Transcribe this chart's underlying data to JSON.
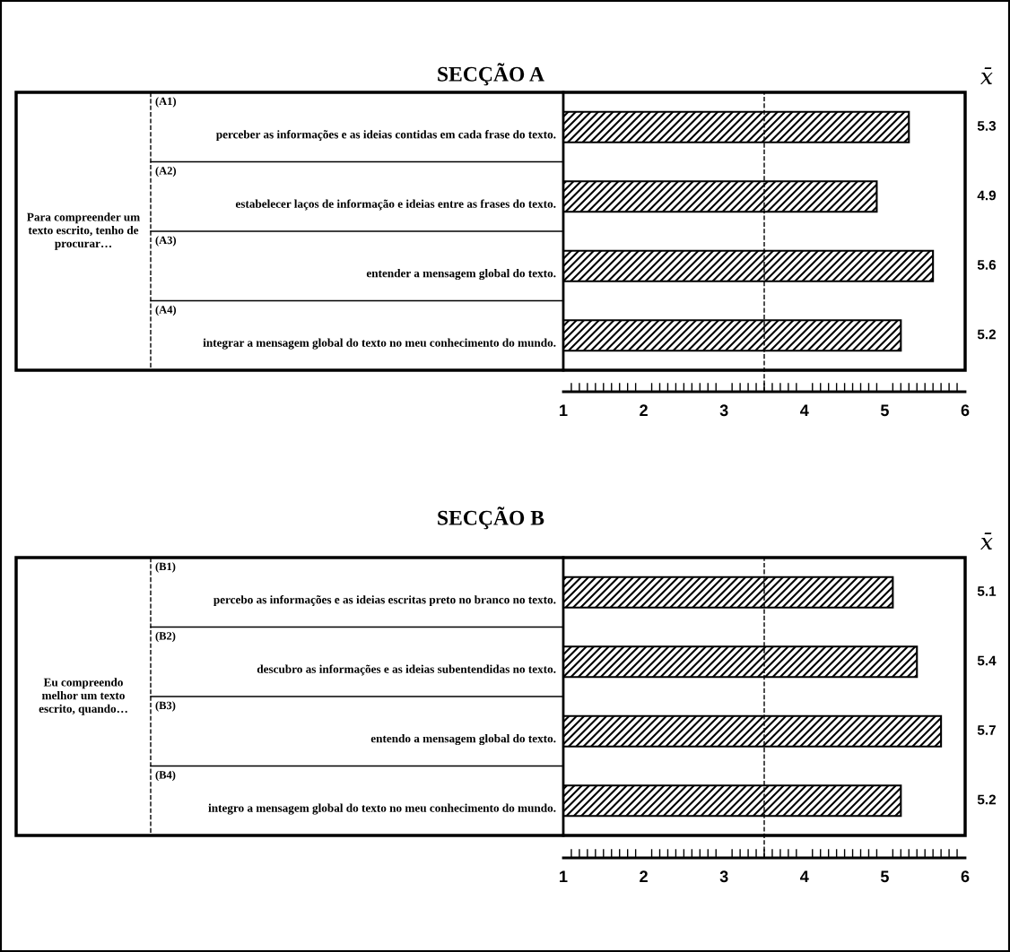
{
  "chart_data": [
    {
      "type": "bar",
      "orientation": "horizontal",
      "title": "SECÇÃO A",
      "categories": [
        "perceber as informações e as ideias contidas em cada frase do texto.",
        "estabelecer laços de informação e ideias entre as frases do texto.",
        "entender a mensagem global do texto.",
        "integrar a mensagem global do texto no meu conhecimento do mundo."
      ],
      "values": [
        5.3,
        4.9,
        5.6,
        5.2
      ],
      "xlim": [
        1,
        6
      ],
      "xticks": [
        1,
        2,
        3,
        4,
        5,
        6
      ],
      "data_labels": true,
      "grid": false,
      "legend": false,
      "ref_lines": [
        {
          "axis": "x",
          "value": 3.5,
          "line_style": "dashed",
          "color": "#000000"
        }
      ],
      "annotations": [
        "x̄",
        "Para compreender um\ntexto escrito, tenho de\nprocurar…",
        "(A1)",
        "(A2)",
        "(A3)",
        "(A4)"
      ]
    },
    {
      "type": "bar",
      "orientation": "horizontal",
      "title": "SECÇÃO B",
      "categories": [
        "percebo as informações e as ideias escritas preto no branco no texto.",
        "descubro as informações e as ideias subentendidas no texto.",
        "entendo a mensagem global do texto.",
        "integro a mensagem global do texto no meu conhecimento do mundo."
      ],
      "values": [
        5.1,
        5.4,
        5.7,
        5.2
      ],
      "xlim": [
        1,
        6
      ],
      "xticks": [
        1,
        2,
        3,
        4,
        5,
        6
      ],
      "data_labels": true,
      "grid": false,
      "legend": false,
      "ref_lines": [
        {
          "axis": "x",
          "value": 3.5,
          "line_style": "dashed",
          "color": "#000000"
        }
      ],
      "annotations": [
        "x̄",
        "Eu compreendo\nmelhor um texto\nescrito, quando…",
        "(B1)",
        "(B2)",
        "(B3)",
        "(B4)"
      ]
    }
  ]
}
